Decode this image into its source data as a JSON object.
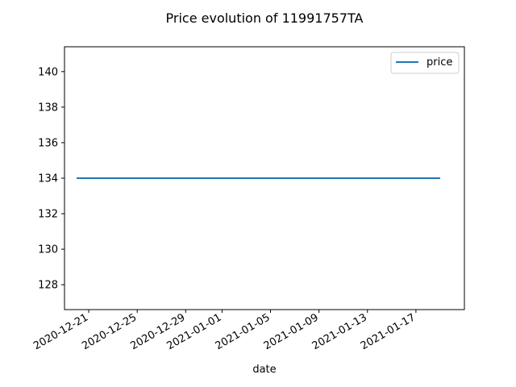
{
  "chart_data": {
    "type": "line",
    "title": "Price evolution of 11991757TA",
    "xlabel": "date",
    "ylabel": "",
    "legend": {
      "placement": "top-right",
      "entries": [
        "price"
      ]
    },
    "grid": false,
    "xlim": [
      "2020-12-19",
      "2021-01-21"
    ],
    "ylim": [
      126.6,
      141.4
    ],
    "x_ticks": [
      "2020-12-21",
      "2020-12-25",
      "2020-12-29",
      "2021-01-01",
      "2021-01-05",
      "2021-01-09",
      "2021-01-13",
      "2021-01-17"
    ],
    "y_ticks": [
      "128",
      "130",
      "132",
      "134",
      "136",
      "138",
      "140"
    ],
    "series": [
      {
        "name": "price",
        "color": "#1f77b4",
        "x": [
          "2020-12-20",
          "2021-01-19"
        ],
        "y": [
          134,
          134
        ]
      }
    ]
  }
}
